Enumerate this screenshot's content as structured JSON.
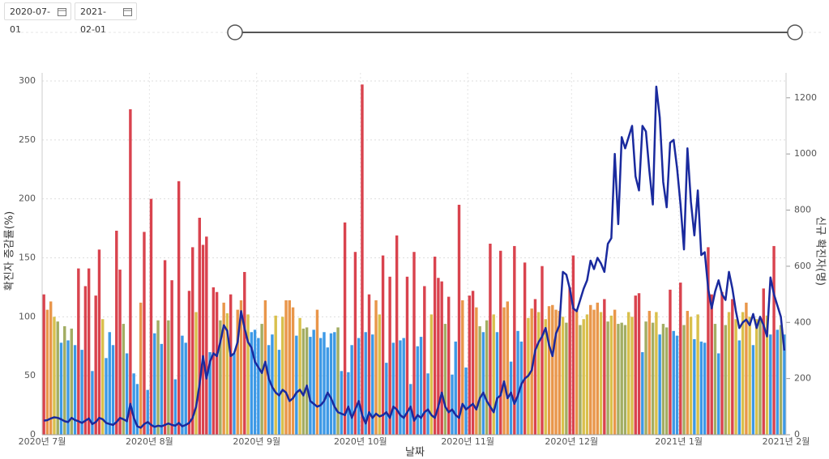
{
  "date_range": {
    "start": "2020-07-01",
    "end": "2021-02-01"
  },
  "chart_data": {
    "type": "bar",
    "xlabel": "날짜",
    "ylabel": "확진자 증감률(%)",
    "y2label": "신규 확진자(명)",
    "xlim": [
      0,
      215
    ],
    "xticks": [
      {
        "value": 0,
        "label": "2020년 7월"
      },
      {
        "value": 31,
        "label": "2020년 8월"
      },
      {
        "value": 62,
        "label": "2020년 9월"
      },
      {
        "value": 92,
        "label": "2020년 10월"
      },
      {
        "value": 123,
        "label": "2020년 11월"
      },
      {
        "value": 153,
        "label": "2020년 12월"
      },
      {
        "value": 184,
        "label": "2021년 1월"
      },
      {
        "value": 215,
        "label": "2021년 2월"
      }
    ],
    "ylim": [
      0,
      300
    ],
    "yticks": [
      0,
      50,
      100,
      150,
      200,
      250,
      300
    ],
    "y2lim": [
      0,
      1260
    ],
    "y2ticks": [
      0,
      200,
      400,
      600,
      800,
      1000,
      1200
    ],
    "grid": true,
    "series": [
      {
        "type": "bar",
        "values": [
          119,
          106,
          113,
          100,
          96,
          78,
          92,
          80,
          90,
          76,
          141,
          72,
          126,
          141,
          54,
          118,
          157,
          98,
          65,
          87,
          76,
          173,
          140,
          94,
          69,
          276,
          52,
          43,
          112,
          172,
          38,
          200,
          86,
          97,
          77,
          148,
          97,
          131,
          47,
          215,
          84,
          78,
          122,
          159,
          104,
          184,
          161,
          168,
          70,
          125,
          121,
          97,
          112,
          103,
          119,
          69,
          106,
          114,
          138,
          102,
          87,
          89,
          82,
          94,
          114,
          76,
          85,
          101,
          72,
          100,
          114,
          114,
          108,
          84,
          99,
          90,
          91,
          83,
          89,
          106,
          82,
          87,
          74,
          86,
          87,
          91,
          54,
          180,
          53,
          76,
          155,
          82,
          297,
          87,
          119,
          85,
          114,
          102,
          152,
          61,
          134,
          78,
          169,
          80,
          82,
          134,
          43,
          155,
          75,
          83,
          126,
          52,
          102,
          151,
          133,
          130,
          94,
          117,
          51,
          79,
          195,
          114,
          57,
          118,
          122,
          108,
          92,
          87,
          97,
          162,
          102,
          87,
          156,
          108,
          113,
          62,
          160,
          88,
          79,
          146,
          99,
          107,
          115,
          104,
          143,
          98,
          109,
          110,
          106,
          105,
          100,
          95,
          125,
          152,
          105,
          93,
          98,
          102,
          110,
          106,
          112,
          104,
          115,
          96,
          101,
          106,
          94,
          95,
          93,
          104,
          100,
          118,
          120,
          70,
          96,
          105,
          95,
          104,
          85,
          94,
          91,
          123,
          88,
          84,
          129,
          93,
          105,
          100,
          81,
          102,
          79,
          78,
          159,
          119,
          94,
          69,
          121,
          93,
          104,
          115,
          98,
          80,
          104,
          112,
          100,
          76,
          98,
          97,
          124,
          101,
          85,
          160,
          89,
          93,
          85
        ],
        "colors": [
          "#d9434e",
          "#e9964a",
          "#e9964a",
          "#d9c04c",
          "#a3ad63",
          "#3d99e6",
          "#a3ad63",
          "#3d99e6",
          "#a3ad63",
          "#3d99e6",
          "#d9434e",
          "#3d99e6",
          "#d9434e",
          "#d9434e",
          "#3d99e6",
          "#d9434e",
          "#d9434e",
          "#d9c04c",
          "#3d99e6",
          "#3d99e6",
          "#3d99e6",
          "#d9434e",
          "#d9434e",
          "#a3ad63",
          "#3d99e6",
          "#d9434e",
          "#3d99e6",
          "#3d99e6",
          "#e9964a",
          "#d9434e",
          "#3d99e6",
          "#d9434e",
          "#3d99e6",
          "#a3ad63",
          "#3d99e6",
          "#d9434e",
          "#a3ad63",
          "#d9434e",
          "#3d99e6",
          "#d9434e",
          "#3d99e6",
          "#3d99e6",
          "#d9434e",
          "#d9434e",
          "#d9c04c",
          "#d9434e",
          "#d9434e",
          "#d9434e",
          "#3d99e6",
          "#d9434e",
          "#d9434e",
          "#a3ad63",
          "#e9964a",
          "#d9c04c",
          "#d9434e",
          "#3d99e6",
          "#e9964a",
          "#e9964a",
          "#d9434e",
          "#d9c04c",
          "#3d99e6",
          "#3d99e6",
          "#3d99e6",
          "#a3ad63",
          "#e9964a",
          "#3d99e6",
          "#3d99e6",
          "#d9c04c",
          "#3d99e6",
          "#d9c04c",
          "#e9964a",
          "#e9964a",
          "#e9964a",
          "#3d99e6",
          "#d9c04c",
          "#a3ad63",
          "#a3ad63",
          "#3d99e6",
          "#3d99e6",
          "#e9964a",
          "#3d99e6",
          "#3d99e6",
          "#3d99e6",
          "#3d99e6",
          "#3d99e6",
          "#a3ad63",
          "#3d99e6",
          "#d9434e",
          "#3d99e6",
          "#3d99e6",
          "#d9434e",
          "#3d99e6",
          "#d9434e",
          "#3d99e6",
          "#d9434e",
          "#3d99e6",
          "#e9964a",
          "#d9c04c",
          "#d9434e",
          "#3d99e6",
          "#d9434e",
          "#3d99e6",
          "#d9434e",
          "#3d99e6",
          "#3d99e6",
          "#d9434e",
          "#3d99e6",
          "#d9434e",
          "#3d99e6",
          "#3d99e6",
          "#d9434e",
          "#3d99e6",
          "#d9c04c",
          "#d9434e",
          "#d9434e",
          "#d9434e",
          "#a3ad63",
          "#d9434e",
          "#3d99e6",
          "#3d99e6",
          "#d9434e",
          "#e9964a",
          "#3d99e6",
          "#d9434e",
          "#d9434e",
          "#e9964a",
          "#a3ad63",
          "#3d99e6",
          "#a3ad63",
          "#d9434e",
          "#d9c04c",
          "#3d99e6",
          "#d9434e",
          "#e9964a",
          "#e9964a",
          "#3d99e6",
          "#d9434e",
          "#3d99e6",
          "#3d99e6",
          "#d9434e",
          "#d9c04c",
          "#e9964a",
          "#d9434e",
          "#d9c04c",
          "#d9434e",
          "#d9c04c",
          "#e9964a",
          "#e9964a",
          "#e9964a",
          "#e9964a",
          "#d9c04c",
          "#a3ad63",
          "#d9434e",
          "#d9434e",
          "#e9964a",
          "#a3ad63",
          "#d9c04c",
          "#d9c04c",
          "#e9964a",
          "#e9964a",
          "#e9964a",
          "#d9c04c",
          "#d9434e",
          "#a3ad63",
          "#d9c04c",
          "#e9964a",
          "#a3ad63",
          "#a3ad63",
          "#a3ad63",
          "#d9c04c",
          "#d9c04c",
          "#d9434e",
          "#d9434e",
          "#3d99e6",
          "#a3ad63",
          "#e9964a",
          "#a3ad63",
          "#d9c04c",
          "#3d99e6",
          "#a3ad63",
          "#a3ad63",
          "#d9434e",
          "#3d99e6",
          "#3d99e6",
          "#d9434e",
          "#a3ad63",
          "#e9964a",
          "#d9c04c",
          "#3d99e6",
          "#d9c04c",
          "#3d99e6",
          "#3d99e6",
          "#d9434e",
          "#d9434e",
          "#a3ad63",
          "#3d99e6",
          "#d9434e",
          "#a3ad63",
          "#d9c04c",
          "#d9434e",
          "#d9c04c",
          "#3d99e6",
          "#d9c04c",
          "#e9964a",
          "#d9c04c",
          "#3d99e6",
          "#d9c04c",
          "#a3ad63",
          "#d9434e",
          "#d9c04c",
          "#3d99e6",
          "#d9434e",
          "#3d99e6",
          "#a3ad63",
          "#3d99e6"
        ]
      },
      {
        "type": "line",
        "axis": "y2",
        "color": "#1a2a9e",
        "values": [
          50,
          52,
          58,
          62,
          60,
          55,
          48,
          45,
          60,
          52,
          48,
          42,
          50,
          58,
          38,
          45,
          60,
          55,
          42,
          38,
          35,
          45,
          60,
          55,
          48,
          110,
          60,
          30,
          25,
          38,
          45,
          35,
          28,
          32,
          30,
          35,
          40,
          35,
          32,
          42,
          30,
          35,
          42,
          60,
          100,
          180,
          280,
          200,
          260,
          290,
          280,
          330,
          390,
          370,
          280,
          290,
          330,
          440,
          380,
          330,
          310,
          260,
          240,
          220,
          260,
          200,
          170,
          150,
          140,
          160,
          150,
          120,
          130,
          150,
          160,
          140,
          175,
          120,
          110,
          100,
          105,
          120,
          150,
          130,
          100,
          80,
          75,
          70,
          100,
          60,
          90,
          120,
          70,
          40,
          80,
          60,
          75,
          65,
          70,
          80,
          60,
          100,
          90,
          70,
          60,
          80,
          100,
          50,
          70,
          60,
          80,
          90,
          70,
          60,
          100,
          150,
          100,
          80,
          90,
          70,
          60,
          110,
          90,
          100,
          110,
          90,
          130,
          150,
          120,
          100,
          80,
          130,
          140,
          190,
          130,
          150,
          110,
          140,
          180,
          200,
          210,
          230,
          300,
          330,
          350,
          380,
          320,
          280,
          360,
          390,
          580,
          570,
          520,
          450,
          440,
          480,
          520,
          550,
          620,
          590,
          630,
          610,
          580,
          680,
          700,
          1000,
          750,
          1060,
          1020,
          1060,
          1100,
          920,
          870,
          1100,
          1080,
          940,
          820,
          1240,
          1130,
          900,
          810,
          1040,
          1050,
          950,
          820,
          660,
          1020,
          830,
          710,
          870,
          640,
          650,
          520,
          450,
          510,
          550,
          500,
          480,
          580,
          520,
          440,
          380,
          400,
          410,
          390,
          430,
          380,
          420,
          390,
          350,
          560,
          500,
          460,
          420,
          300
        ]
      }
    ]
  }
}
